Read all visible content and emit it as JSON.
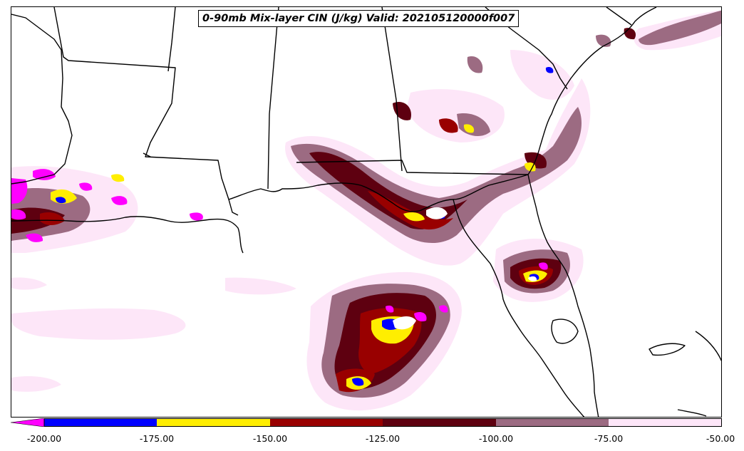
{
  "title": "0-90mb Mix-layer CIN (J/kg) Valid: 202105120000f007",
  "colorbar": {
    "ticks": [
      "-200.00",
      "-175.00",
      "-150.00",
      "-125.00",
      "-100.00",
      "-75.00",
      "-50.00"
    ],
    "bins": [
      {
        "range": "< -200",
        "color": "#ff00ff"
      },
      {
        "range": "-200 to -175",
        "color": "#0000ff"
      },
      {
        "range": "-175 to -150",
        "color": "#ffee00"
      },
      {
        "range": "-150 to -125",
        "color": "#990000"
      },
      {
        "range": "-125 to -100",
        "color": "#5e0010"
      },
      {
        "range": "-100 to -75",
        "color": "#9c6b82"
      },
      {
        "range": "-75 to -50",
        "color": "#fde6f8"
      }
    ]
  },
  "map": {
    "region": "Gulf Coast / Southeastern United States",
    "field_colors": {
      "faint": "#fde6f8",
      "mauve": "#9c6b82",
      "darkred": "#5e0010",
      "red": "#990000",
      "yellow": "#ffee00",
      "blue": "#0000ff",
      "magenta": "#ff00ff"
    }
  }
}
